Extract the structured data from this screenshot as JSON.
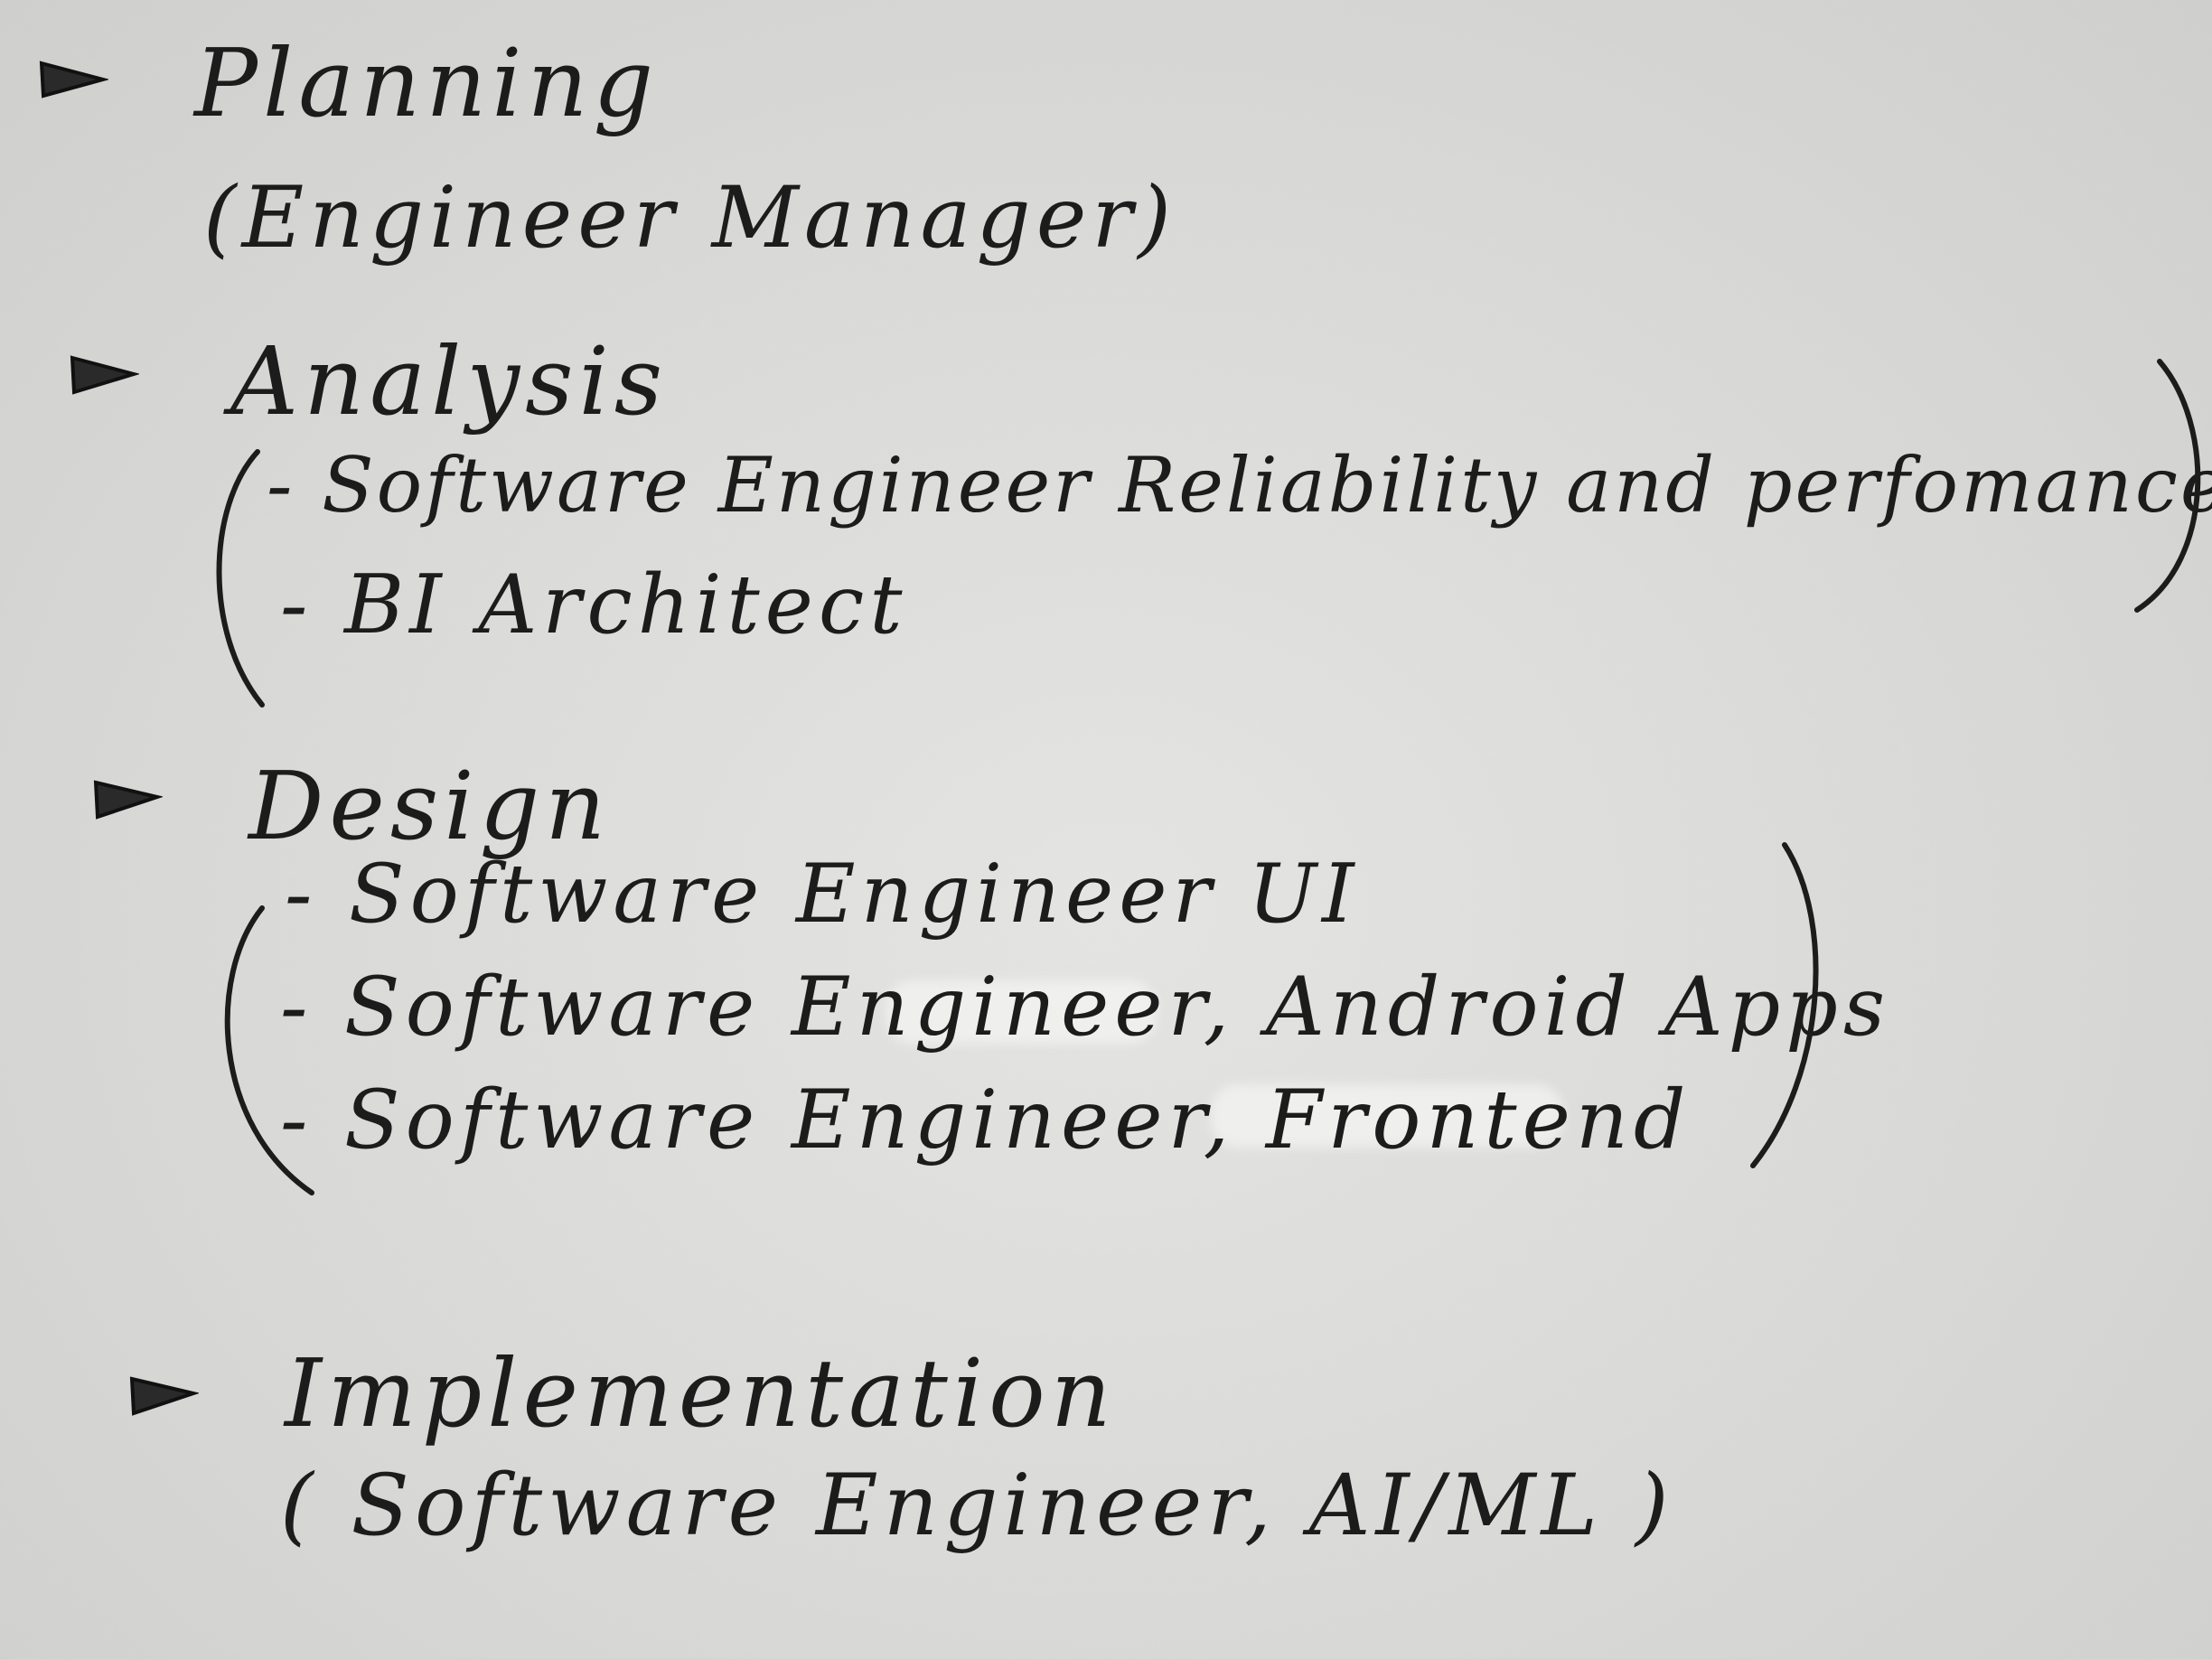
{
  "sections": [
    {
      "heading": "Planning",
      "lines": [
        "(Engineer Manager)"
      ]
    },
    {
      "heading": "Analysis",
      "lines": [
        "- Software Engineer Reliability and perfomance",
        "- BI Architect"
      ]
    },
    {
      "heading": "Design",
      "lines": [
        "- Software Engineer UI",
        "- Software Engineer, Android Apps",
        "- Software Engineer, Frontend"
      ]
    },
    {
      "heading": "Implementation",
      "lines": [
        "( Software Engineer, AI/ML )"
      ]
    }
  ],
  "bullet_icon": "triangle-bullet-icon",
  "ink_color": "#1c1c1c",
  "paper_color": "#dcdcda"
}
